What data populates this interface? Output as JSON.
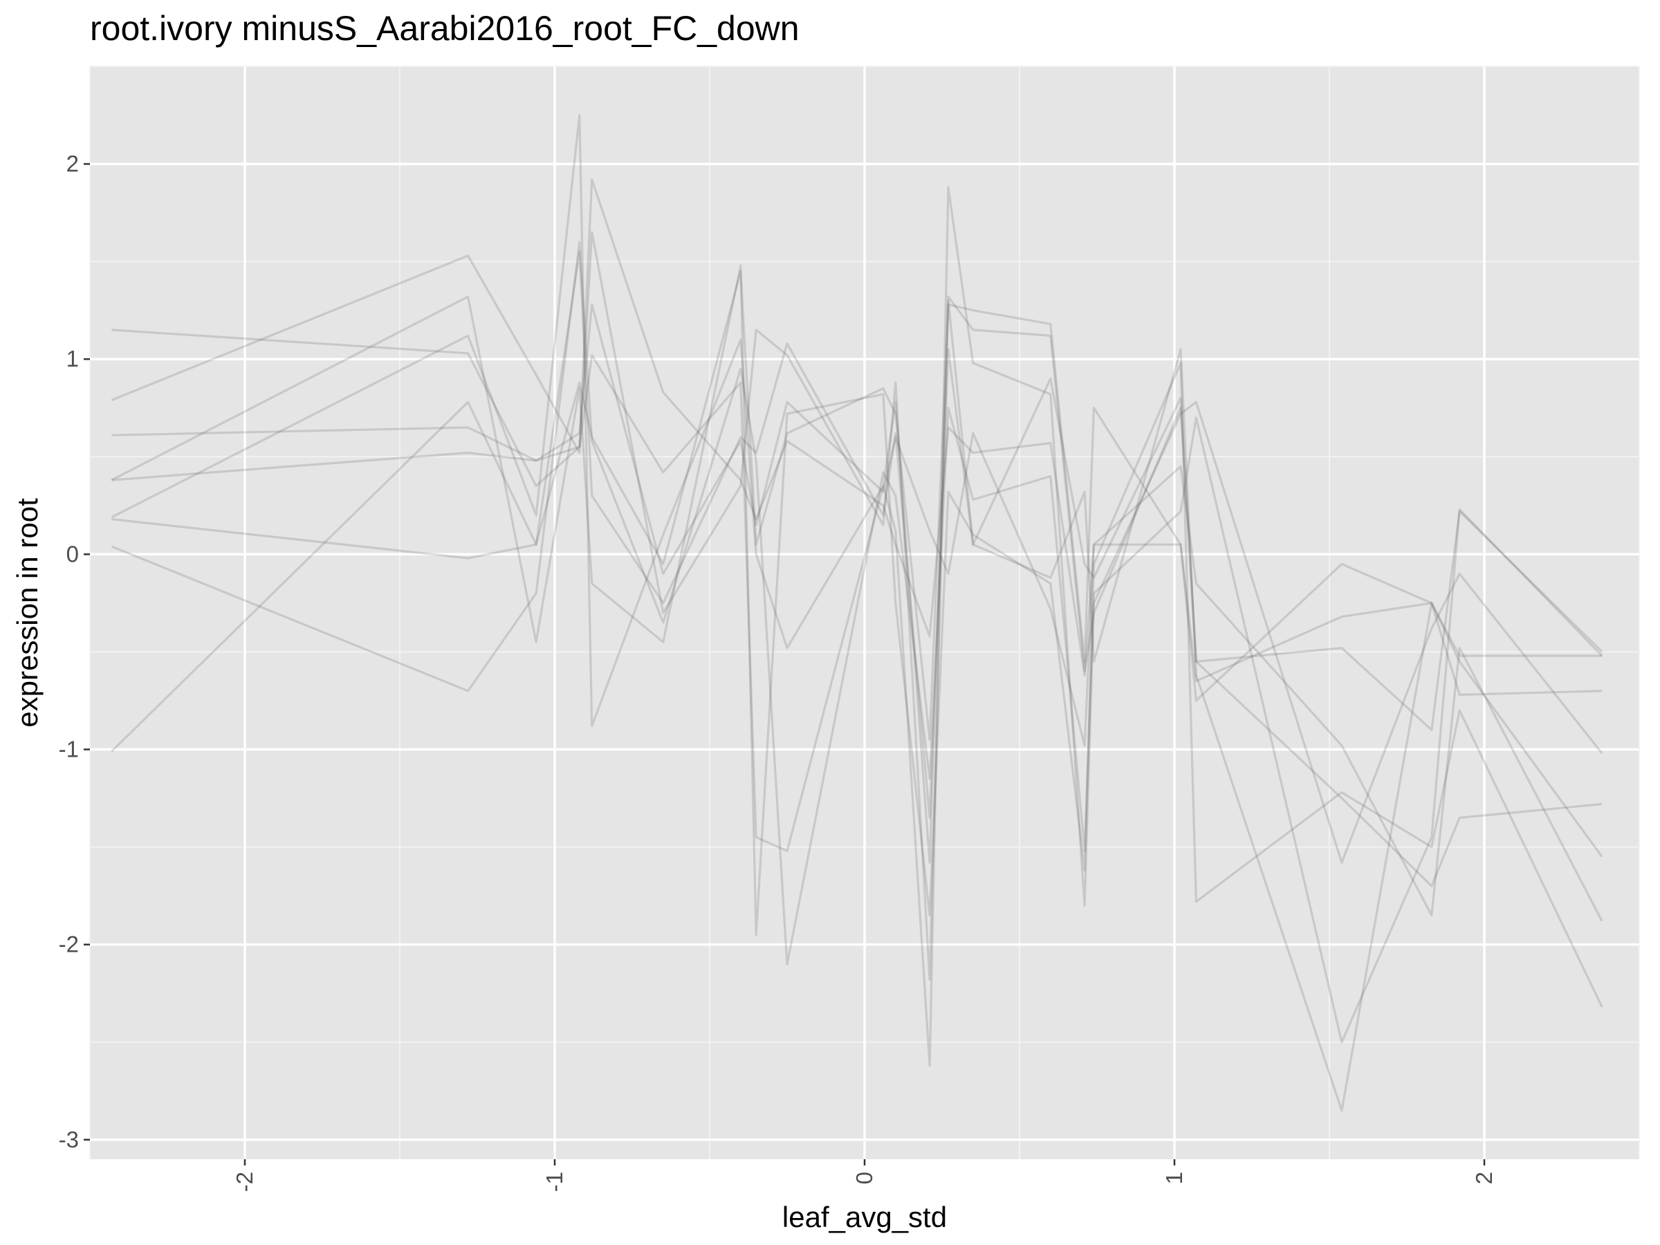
{
  "chart_data": {
    "type": "line",
    "title": "root.ivory minusS_Aarabi2016_root_FC_down",
    "xlabel": "leaf_avg_std",
    "ylabel": "expression in root",
    "xlim": [
      -2.5,
      2.5
    ],
    "ylim": [
      -3.1,
      2.5
    ],
    "x_ticks": [
      -2,
      -1,
      0,
      1,
      2
    ],
    "x_tick_labels": [
      "-2",
      "-1",
      "0",
      "1",
      "2"
    ],
    "y_ticks": [
      -3,
      -2,
      -1,
      0,
      1,
      2
    ],
    "y_tick_labels": [
      "-3",
      "-2",
      "-1",
      "0",
      "1",
      "2"
    ],
    "x_tick_label_rotation": "vertical",
    "grid": true,
    "legend": "none",
    "colors": {
      "panel_background": "#e5e5e5",
      "grid_major": "#ffffff",
      "grid_minor": "#f2f2f2",
      "line": "#555555",
      "tick_label": "#4d4d4d"
    },
    "x": [
      -2.43,
      -1.28,
      -1.06,
      -0.92,
      -0.88,
      -0.65,
      -0.4,
      -0.35,
      -0.25,
      0.06,
      0.1,
      0.21,
      0.27,
      0.35,
      0.6,
      0.71,
      0.74,
      1.02,
      1.07,
      1.54,
      1.83,
      1.92,
      2.38
    ],
    "series": [
      {
        "values": [
          1.15,
          1.03,
          0.35,
          0.55,
          1.92,
          0.83,
          0.38,
          0.18,
          0.58,
          0.25,
          0.05,
          -0.42,
          0.65,
          0.52,
          0.57,
          -0.62,
          0.05,
          0.05,
          -0.75,
          -0.05,
          -0.25,
          -0.72,
          -0.7
        ]
      },
      {
        "values": [
          0.79,
          1.53,
          0.92,
          0.52,
          1.65,
          -0.3,
          0.35,
          1.15,
          1.02,
          0.15,
          0.88,
          -2.18,
          1.32,
          1.15,
          1.12,
          -0.6,
          -0.3,
          0.75,
          -0.55,
          -0.48,
          -0.9,
          0.22,
          -0.5
        ]
      },
      {
        "values": [
          0.61,
          0.65,
          0.48,
          0.55,
          1.02,
          0.42,
          0.88,
          -1.45,
          -1.52,
          0.35,
          0.78,
          -1.58,
          1.28,
          1.25,
          1.18,
          -0.55,
          0.75,
          0.05,
          -0.65,
          -0.32,
          -0.25,
          -0.52,
          -0.52
        ]
      },
      {
        "values": [
          0.38,
          1.32,
          -0.45,
          0.85,
          -0.15,
          -0.45,
          1.48,
          -1.95,
          0.72,
          0.82,
          -0.25,
          -1.85,
          0.32,
          0.1,
          -0.15,
          -1.62,
          -0.05,
          0.98,
          -1.78,
          -1.22,
          -1.5,
          -0.8,
          -2.32
        ]
      },
      {
        "values": [
          0.19,
          1.12,
          0.2,
          2.25,
          -0.88,
          0.1,
          1.1,
          0.0,
          -0.48,
          0.35,
          0.12,
          -2.62,
          1.88,
          0.98,
          0.82,
          -1.8,
          -0.25,
          0.72,
          0.78,
          -1.58,
          -0.38,
          -0.1,
          -1.02
        ]
      },
      {
        "values": [
          0.04,
          -0.7,
          -0.2,
          1.6,
          0.58,
          -0.35,
          0.95,
          0.48,
          -2.1,
          0.42,
          0.3,
          -1.15,
          0.75,
          0.28,
          0.4,
          -1.52,
          -0.2,
          0.22,
          0.7,
          -2.5,
          -1.45,
          0.23,
          -0.52
        ]
      },
      {
        "values": [
          -1.01,
          0.78,
          0.05,
          0.88,
          0.6,
          -0.05,
          1.45,
          0.05,
          0.62,
          0.85,
          0.72,
          -0.95,
          1.3,
          0.05,
          -0.12,
          0.32,
          -0.55,
          1.05,
          -0.62,
          -2.85,
          -0.25,
          -0.55,
          -1.55
        ]
      },
      {
        "values": [
          0.38,
          0.52,
          0.48,
          0.62,
          1.28,
          -0.1,
          0.58,
          0.15,
          0.78,
          0.32,
          0.6,
          0.12,
          -0.1,
          0.62,
          -0.28,
          -0.98,
          0.05,
          0.45,
          -0.15,
          -0.98,
          -1.85,
          -0.48,
          -1.88
        ]
      },
      {
        "values": [
          0.18,
          -0.02,
          0.05,
          1.55,
          0.3,
          -0.25,
          0.6,
          0.52,
          1.08,
          0.2,
          0.62,
          -1.35,
          1.05,
          0.05,
          0.9,
          -0.05,
          -0.12,
          0.8,
          -0.55,
          -1.25,
          -1.7,
          -1.35,
          -1.28
        ]
      }
    ]
  }
}
